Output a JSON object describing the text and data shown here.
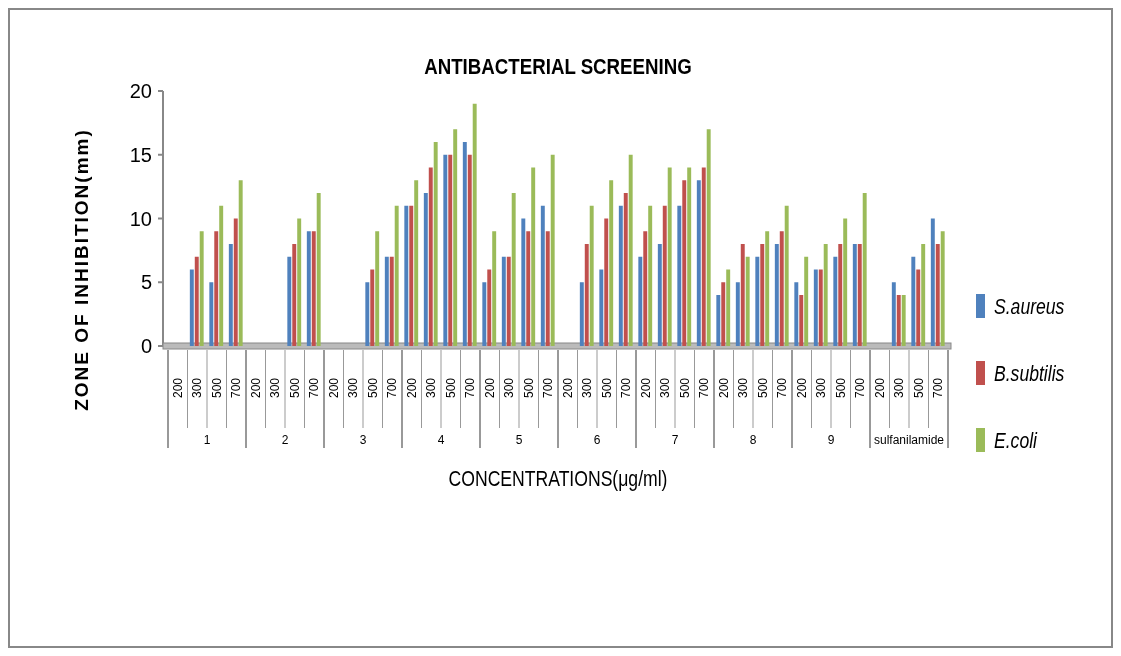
{
  "chart_data": {
    "type": "bar",
    "title": "ANTIBACTERIAL SCREENING",
    "xlabel": "CONCENTRATIONS(μg/ml)",
    "ylabel": "ZONE OF INHIBITION(mm)",
    "categories": [
      "200",
      "300",
      "500",
      "700",
      "200",
      "300",
      "500",
      "700",
      "200",
      "300",
      "500",
      "700",
      "200",
      "300",
      "500",
      "700",
      "200",
      "300",
      "500",
      "700",
      "200",
      "300",
      "500",
      "700",
      "200",
      "300",
      "500",
      "700",
      "200",
      "300",
      "500",
      "700",
      "200",
      "300",
      "500",
      "700",
      "200",
      "300",
      "500",
      "700"
    ],
    "annotations": [
      "1",
      "2",
      "3",
      "4",
      "5",
      "6",
      "7",
      "8",
      "9",
      "sulfanilamide"
    ],
    "series": [
      {
        "name": "S.aureus",
        "color": "#4f81bd",
        "values": [
          0,
          6,
          5,
          8,
          0,
          0,
          7,
          9,
          0,
          0,
          5,
          7,
          11,
          12,
          15,
          16,
          5,
          7,
          10,
          11,
          0,
          5,
          6,
          11,
          7,
          8,
          11,
          13,
          4,
          5,
          7,
          8,
          5,
          6,
          7,
          8,
          0,
          5,
          7,
          10
        ]
      },
      {
        "name": "B.subtilis",
        "color": "#c0504d",
        "values": [
          0,
          7,
          9,
          10,
          0,
          0,
          8,
          9,
          0,
          0,
          6,
          7,
          11,
          14,
          15,
          15,
          6,
          7,
          9,
          9,
          0,
          8,
          10,
          12,
          9,
          11,
          13,
          14,
          5,
          8,
          8,
          9,
          4,
          6,
          8,
          8,
          0,
          4,
          6,
          8
        ]
      },
      {
        "name": "E.coli",
        "color": "#9bbb59",
        "values": [
          0,
          9,
          11,
          13,
          0,
          0,
          10,
          12,
          0,
          0,
          9,
          11,
          13,
          16,
          17,
          19,
          9,
          12,
          14,
          15,
          0,
          11,
          13,
          15,
          11,
          14,
          14,
          17,
          6,
          7,
          9,
          11,
          7,
          8,
          10,
          12,
          0,
          4,
          8,
          9
        ]
      }
    ],
    "ylim": [
      0,
      20
    ],
    "yticks": [
      0,
      5,
      10,
      15,
      20
    ],
    "grid": false,
    "legend": "right"
  }
}
